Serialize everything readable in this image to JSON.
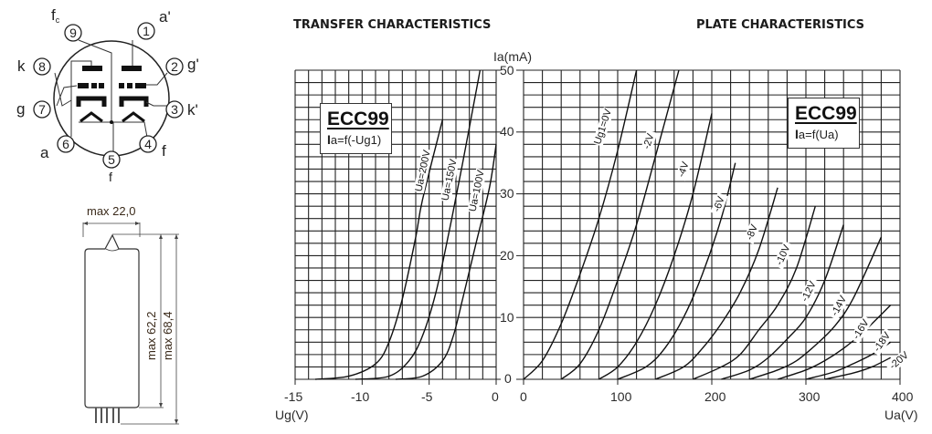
{
  "pinout": {
    "pins": [
      {
        "num": "1",
        "label": "a'"
      },
      {
        "num": "2",
        "label": "g'"
      },
      {
        "num": "3",
        "label": "k'"
      },
      {
        "num": "4",
        "label": "f"
      },
      {
        "num": "5",
        "label": "f"
      },
      {
        "num": "6",
        "label": "a"
      },
      {
        "num": "7",
        "label": "g"
      },
      {
        "num": "8",
        "label": "k"
      },
      {
        "num": "9",
        "label": "fc"
      }
    ]
  },
  "dimensions": {
    "width_label": "max 22,0",
    "body_height_label": "max 62,2",
    "total_height_label": "max 68,4"
  },
  "transfer": {
    "title": "TRANSFER CHARACTERISTICS",
    "legend_name": "ECC99",
    "legend_fn_bold": "I",
    "legend_fn_rest": "a=f(-Ug1)",
    "xlabel": "Ug(V)",
    "x_ticks": [
      "-15",
      "-10",
      "-5",
      "0"
    ],
    "curve_labels": [
      "Ua=200V",
      "Ua=150V",
      "Ua=100V"
    ]
  },
  "plate": {
    "title": "PLATE CHARACTERISTICS",
    "legend_name": "ECC99",
    "legend_fn_bold": "I",
    "legend_fn_rest": "a=f(Ua)",
    "xlabel": "Ua(V)",
    "ylabel": "Ia(mA)",
    "x_ticks": [
      "0",
      "100",
      "200",
      "300",
      "400"
    ],
    "y_ticks": [
      "0",
      "10",
      "20",
      "30",
      "40",
      "50"
    ],
    "curve_labels": [
      "Ug1=0V",
      "-2V",
      "-4V",
      "-6V",
      "-8V",
      "-10V",
      "-12V",
      "-14V",
      "-16V",
      "-18V",
      "-20V"
    ]
  },
  "chart_data": [
    {
      "type": "line",
      "title": "TRANSFER CHARACTERISTICS",
      "subtitle": "ECC99  Ia=f(-Ug1)",
      "xlabel": "Ug(V)",
      "ylabel": "Ia(mA)",
      "xlim": [
        -15,
        0
      ],
      "ylim": [
        0,
        50
      ],
      "grid": true,
      "x_ticks": [
        -15,
        -10,
        -5,
        0
      ],
      "y_ticks": [
        0,
        10,
        20,
        30,
        40,
        50
      ],
      "series": [
        {
          "name": "Ua=200V",
          "x": [
            -13.5,
            -11,
            -9,
            -8,
            -7,
            -6,
            -5.5,
            -4
          ],
          "y": [
            0,
            0.5,
            2.5,
            6,
            13,
            23,
            29,
            42
          ]
        },
        {
          "name": "Ua=150V",
          "x": [
            -10.5,
            -8,
            -6.5,
            -5.5,
            -4.5,
            -3.5,
            -2.5,
            -1.2
          ],
          "y": [
            0,
            0.5,
            3,
            7,
            14,
            24,
            35,
            50
          ]
        },
        {
          "name": "Ua=100V",
          "x": [
            -7.5,
            -5.5,
            -4,
            -3.2,
            -2.5,
            -1.5,
            -0.5,
            0
          ],
          "y": [
            0,
            0.5,
            3,
            7,
            13,
            22,
            31,
            38
          ]
        }
      ]
    },
    {
      "type": "line",
      "title": "PLATE CHARACTERISTICS",
      "subtitle": "ECC99  Ia=f(Ua)",
      "xlabel": "Ua(V)",
      "ylabel": "Ia(mA)",
      "xlim": [
        0,
        400
      ],
      "ylim": [
        0,
        50
      ],
      "grid": true,
      "x_ticks": [
        0,
        100,
        200,
        300,
        400
      ],
      "y_ticks": [
        0,
        10,
        20,
        30,
        40,
        50
      ],
      "series": [
        {
          "name": "Ug1=0V",
          "x": [
            0,
            20,
            40,
            60,
            80,
            100,
            120
          ],
          "y": [
            0,
            3,
            9,
            17,
            26,
            37,
            50
          ]
        },
        {
          "name": "-2V",
          "x": [
            40,
            60,
            80,
            100,
            120,
            140,
            165
          ],
          "y": [
            0,
            2.5,
            8,
            16,
            25,
            36,
            50
          ]
        },
        {
          "name": "-4V",
          "x": [
            80,
            100,
            120,
            140,
            160,
            180,
            200
          ],
          "y": [
            0,
            2,
            6,
            12,
            20,
            30,
            43
          ]
        },
        {
          "name": "-6V",
          "x": [
            100,
            130,
            150,
            170,
            190,
            210,
            225
          ],
          "y": [
            0,
            2,
            5,
            10,
            17,
            26,
            35
          ]
        },
        {
          "name": "-8V",
          "x": [
            140,
            170,
            190,
            210,
            230,
            250,
            270
          ],
          "y": [
            0,
            2,
            5,
            9,
            14,
            21,
            31
          ]
        },
        {
          "name": "-10V",
          "x": [
            180,
            210,
            230,
            250,
            270,
            290,
            310
          ],
          "y": [
            0,
            2,
            4,
            8,
            12,
            18,
            28
          ]
        },
        {
          "name": "-12V",
          "x": [
            210,
            240,
            260,
            280,
            300,
            320,
            340
          ],
          "y": [
            0,
            1.5,
            3.5,
            6.5,
            10,
            16,
            25
          ]
        },
        {
          "name": "-14V",
          "x": [
            240,
            270,
            290,
            310,
            330,
            350,
            380
          ],
          "y": [
            0,
            1.5,
            3,
            5.5,
            8.5,
            13,
            23
          ]
        },
        {
          "name": "-16V",
          "x": [
            270,
            300,
            320,
            340,
            360,
            390
          ],
          "y": [
            0,
            1.5,
            3,
            5,
            7.5,
            12
          ]
        },
        {
          "name": "-18V",
          "x": [
            300,
            330,
            350,
            370,
            390
          ],
          "y": [
            0,
            1.2,
            2.5,
            4,
            6
          ]
        },
        {
          "name": "-20V",
          "x": [
            320,
            350,
            370,
            390
          ],
          "y": [
            0,
            1,
            2,
            3.5
          ]
        }
      ]
    }
  ]
}
